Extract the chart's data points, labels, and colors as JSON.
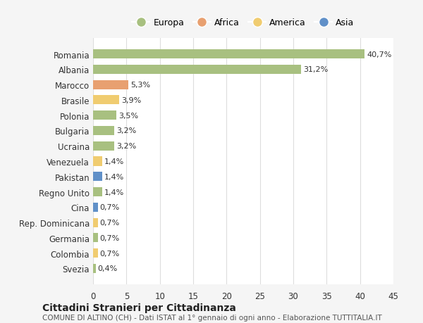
{
  "countries": [
    "Romania",
    "Albania",
    "Marocco",
    "Brasile",
    "Polonia",
    "Bulgaria",
    "Ucraina",
    "Venezuela",
    "Pakistan",
    "Regno Unito",
    "Cina",
    "Rep. Dominicana",
    "Germania",
    "Colombia",
    "Svezia"
  ],
  "values": [
    40.7,
    31.2,
    5.3,
    3.9,
    3.5,
    3.2,
    3.2,
    1.4,
    1.4,
    1.4,
    0.7,
    0.7,
    0.7,
    0.7,
    0.4
  ],
  "labels": [
    "40,7%",
    "31,2%",
    "5,3%",
    "3,9%",
    "3,5%",
    "3,2%",
    "3,2%",
    "1,4%",
    "1,4%",
    "1,4%",
    "0,7%",
    "0,7%",
    "0,7%",
    "0,7%",
    "0,4%"
  ],
  "continents": [
    "Europa",
    "Europa",
    "Africa",
    "America",
    "Europa",
    "Europa",
    "Europa",
    "America",
    "Asia",
    "Europa",
    "Asia",
    "America",
    "Europa",
    "America",
    "Europa"
  ],
  "continent_colors": {
    "Europa": "#a8c080",
    "Africa": "#e8a070",
    "America": "#f0cc70",
    "Asia": "#6090c8"
  },
  "legend_order": [
    "Europa",
    "Africa",
    "America",
    "Asia"
  ],
  "xlim": [
    0,
    45
  ],
  "xticks": [
    0,
    5,
    10,
    15,
    20,
    25,
    30,
    35,
    40,
    45
  ],
  "title1": "Cittadini Stranieri per Cittadinanza",
  "title2": "COMUNE DI ALTINO (CH) - Dati ISTAT al 1° gennaio di ogni anno - Elaborazione TUTTITALIA.IT",
  "background_color": "#f5f5f5",
  "plot_background_color": "#ffffff",
  "grid_color": "#dddddd"
}
